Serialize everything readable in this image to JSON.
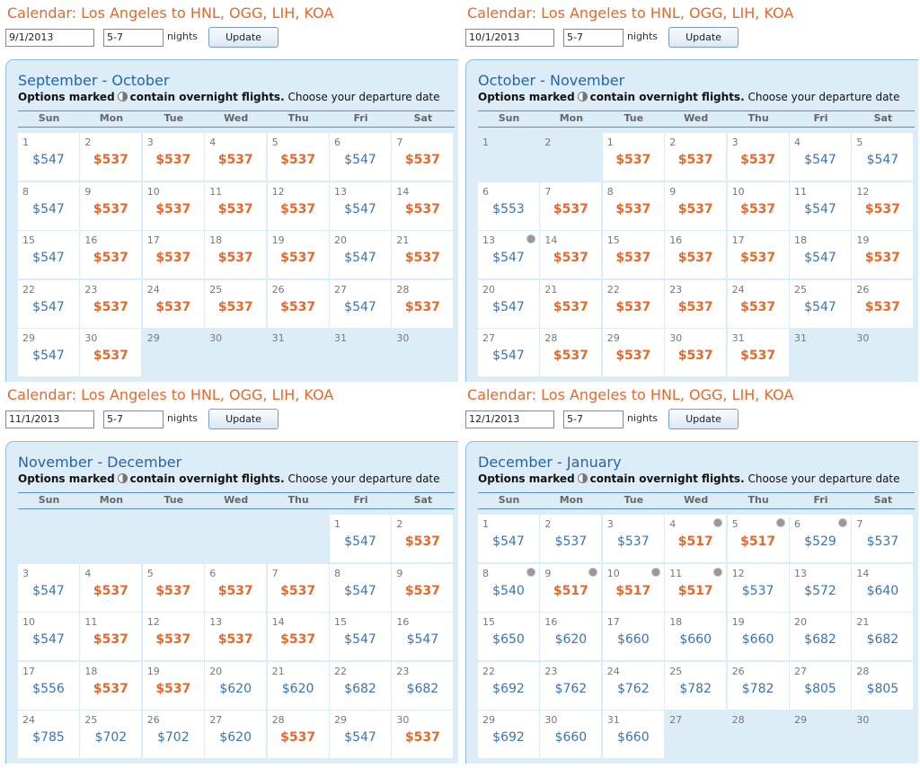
{
  "panels": [
    {
      "title": "Calendar: Los Angeles to HNL, OGG, LIH, KOA",
      "date": "9/1/2013",
      "nights": "5-7",
      "nights_label": "nights",
      "button": "Update",
      "heading": "September - October",
      "note": {
        "lead": "Options marked",
        "bold": "contain overnight flights.",
        "rest": "Choose your departure date"
      },
      "weekdays": [
        "Sun",
        "Mon",
        "Tue",
        "Wed",
        "Thu",
        "Fri",
        "Sat"
      ],
      "weeks": [
        [
          {
            "day": "1",
            "price": "$547"
          },
          {
            "day": "2",
            "price": "$537",
            "low": true
          },
          {
            "day": "3",
            "price": "$537",
            "low": true
          },
          {
            "day": "4",
            "price": "$537",
            "low": true
          },
          {
            "day": "5",
            "price": "$537",
            "low": true
          },
          {
            "day": "6",
            "price": "$547"
          },
          {
            "day": "7",
            "price": "$537",
            "low": true
          }
        ],
        [
          {
            "day": "8",
            "price": "$547"
          },
          {
            "day": "9",
            "price": "$537",
            "low": true
          },
          {
            "day": "10",
            "price": "$537",
            "low": true
          },
          {
            "day": "11",
            "price": "$537",
            "low": true
          },
          {
            "day": "12",
            "price": "$537",
            "low": true
          },
          {
            "day": "13",
            "price": "$547"
          },
          {
            "day": "14",
            "price": "$537",
            "low": true
          }
        ],
        [
          {
            "day": "15",
            "price": "$547"
          },
          {
            "day": "16",
            "price": "$537",
            "low": true
          },
          {
            "day": "17",
            "price": "$537",
            "low": true
          },
          {
            "day": "18",
            "price": "$537",
            "low": true
          },
          {
            "day": "19",
            "price": "$537",
            "low": true
          },
          {
            "day": "20",
            "price": "$547"
          },
          {
            "day": "21",
            "price": "$537",
            "low": true
          }
        ],
        [
          {
            "day": "22",
            "price": "$547"
          },
          {
            "day": "23",
            "price": "$537",
            "low": true
          },
          {
            "day": "24",
            "price": "$537",
            "low": true
          },
          {
            "day": "25",
            "price": "$537",
            "low": true
          },
          {
            "day": "26",
            "price": "$537",
            "low": true
          },
          {
            "day": "27",
            "price": "$547"
          },
          {
            "day": "28",
            "price": "$537",
            "low": true
          }
        ],
        [
          {
            "day": "29",
            "price": "$547"
          },
          {
            "day": "30",
            "price": "$537",
            "low": true
          },
          {
            "day": "29"
          },
          {
            "day": "30"
          },
          {
            "day": "31"
          },
          {
            "day": "31"
          },
          {
            "day": "30"
          }
        ]
      ]
    },
    {
      "title": "Calendar: Los Angeles to HNL, OGG, LIH, KOA",
      "date": "10/1/2013",
      "nights": "5-7",
      "nights_label": "nights",
      "button": "Update",
      "heading": "October - November",
      "note": {
        "lead": "Options marked",
        "bold": "contain overnight flights.",
        "rest": "Choose your departure date"
      },
      "weekdays": [
        "Sun",
        "Mon",
        "Tue",
        "Wed",
        "Thu",
        "Fri",
        "Sat"
      ],
      "weeks": [
        [
          {
            "day": "1"
          },
          {
            "day": "2"
          },
          {
            "day": "1",
            "price": "$537",
            "low": true
          },
          {
            "day": "2",
            "price": "$537",
            "low": true
          },
          {
            "day": "3",
            "price": "$537",
            "low": true
          },
          {
            "day": "4",
            "price": "$547"
          },
          {
            "day": "5",
            "price": "$547"
          }
        ],
        [
          {
            "day": "6",
            "price": "$553"
          },
          {
            "day": "7",
            "price": "$537",
            "low": true
          },
          {
            "day": "8",
            "price": "$537",
            "low": true
          },
          {
            "day": "9",
            "price": "$537",
            "low": true
          },
          {
            "day": "10",
            "price": "$537",
            "low": true
          },
          {
            "day": "11",
            "price": "$547"
          },
          {
            "day": "12",
            "price": "$537",
            "low": true
          }
        ],
        [
          {
            "day": "13",
            "price": "$547",
            "overnight": true
          },
          {
            "day": "14",
            "price": "$537",
            "low": true
          },
          {
            "day": "15",
            "price": "$537",
            "low": true
          },
          {
            "day": "16",
            "price": "$537",
            "low": true
          },
          {
            "day": "17",
            "price": "$537",
            "low": true
          },
          {
            "day": "18",
            "price": "$547"
          },
          {
            "day": "19",
            "price": "$537",
            "low": true
          }
        ],
        [
          {
            "day": "20",
            "price": "$547"
          },
          {
            "day": "21",
            "price": "$537",
            "low": true
          },
          {
            "day": "22",
            "price": "$537",
            "low": true
          },
          {
            "day": "23",
            "price": "$537",
            "low": true
          },
          {
            "day": "24",
            "price": "$537",
            "low": true
          },
          {
            "day": "25",
            "price": "$547"
          },
          {
            "day": "26",
            "price": "$537",
            "low": true
          }
        ],
        [
          {
            "day": "27",
            "price": "$547"
          },
          {
            "day": "28",
            "price": "$537",
            "low": true
          },
          {
            "day": "29",
            "price": "$537",
            "low": true
          },
          {
            "day": "30",
            "price": "$537",
            "low": true
          },
          {
            "day": "31",
            "price": "$537",
            "low": true
          },
          {
            "day": "31"
          },
          {
            "day": "30"
          }
        ]
      ]
    },
    {
      "title": "Calendar: Los Angeles to HNL, OGG, LIH, KOA",
      "date": "11/1/2013",
      "nights": "5-7",
      "nights_label": "nights",
      "button": "Update",
      "heading": "November - December",
      "note": {
        "lead": "Options marked",
        "bold": "contain overnight flights.",
        "rest": "Choose your departure date"
      },
      "weekdays": [
        "Sun",
        "Mon",
        "Tue",
        "Wed",
        "Thu",
        "Fri",
        "Sat"
      ],
      "weeks": [
        [
          null,
          null,
          null,
          null,
          null,
          {
            "day": "1",
            "price": "$547"
          },
          {
            "day": "2",
            "price": "$537",
            "low": true
          }
        ],
        [
          {
            "day": "3",
            "price": "$547"
          },
          {
            "day": "4",
            "price": "$537",
            "low": true
          },
          {
            "day": "5",
            "price": "$537",
            "low": true
          },
          {
            "day": "6",
            "price": "$537",
            "low": true
          },
          {
            "day": "7",
            "price": "$537",
            "low": true
          },
          {
            "day": "8",
            "price": "$547"
          },
          {
            "day": "9",
            "price": "$537",
            "low": true
          }
        ],
        [
          {
            "day": "10",
            "price": "$547"
          },
          {
            "day": "11",
            "price": "$537",
            "low": true
          },
          {
            "day": "12",
            "price": "$537",
            "low": true
          },
          {
            "day": "13",
            "price": "$537",
            "low": true
          },
          {
            "day": "14",
            "price": "$537",
            "low": true
          },
          {
            "day": "15",
            "price": "$547"
          },
          {
            "day": "16",
            "price": "$547"
          }
        ],
        [
          {
            "day": "17",
            "price": "$556"
          },
          {
            "day": "18",
            "price": "$537",
            "low": true
          },
          {
            "day": "19",
            "price": "$537",
            "low": true
          },
          {
            "day": "20",
            "price": "$620"
          },
          {
            "day": "21",
            "price": "$620"
          },
          {
            "day": "22",
            "price": "$682"
          },
          {
            "day": "23",
            "price": "$682"
          }
        ],
        [
          {
            "day": "24",
            "price": "$785"
          },
          {
            "day": "25",
            "price": "$702"
          },
          {
            "day": "26",
            "price": "$702"
          },
          {
            "day": "27",
            "price": "$620"
          },
          {
            "day": "28",
            "price": "$537",
            "low": true
          },
          {
            "day": "29",
            "price": "$547"
          },
          {
            "day": "30",
            "price": "$537",
            "low": true
          }
        ]
      ]
    },
    {
      "title": "Calendar: Los Angeles to HNL, OGG, LIH, KOA",
      "date": "12/1/2013",
      "nights": "5-7",
      "nights_label": "nights",
      "button": "Update",
      "heading": "December - January",
      "note": {
        "lead": "Options marked",
        "bold": "contain overnight flights.",
        "rest": "Choose your departure date"
      },
      "weekdays": [
        "Sun",
        "Mon",
        "Tue",
        "Wed",
        "Thu",
        "Fri",
        "Sat"
      ],
      "weeks": [
        [
          {
            "day": "1",
            "price": "$547"
          },
          {
            "day": "2",
            "price": "$537"
          },
          {
            "day": "3",
            "price": "$537"
          },
          {
            "day": "4",
            "price": "$517",
            "low": true,
            "overnight": true
          },
          {
            "day": "5",
            "price": "$517",
            "low": true,
            "overnight": true
          },
          {
            "day": "6",
            "price": "$529",
            "overnight": true
          },
          {
            "day": "7",
            "price": "$537"
          }
        ],
        [
          {
            "day": "8",
            "price": "$540",
            "overnight": true
          },
          {
            "day": "9",
            "price": "$517",
            "low": true,
            "overnight": true
          },
          {
            "day": "10",
            "price": "$517",
            "low": true,
            "overnight": true
          },
          {
            "day": "11",
            "price": "$517",
            "low": true,
            "overnight": true
          },
          {
            "day": "12",
            "price": "$537"
          },
          {
            "day": "13",
            "price": "$572"
          },
          {
            "day": "14",
            "price": "$640"
          }
        ],
        [
          {
            "day": "15",
            "price": "$650"
          },
          {
            "day": "16",
            "price": "$620"
          },
          {
            "day": "17",
            "price": "$660"
          },
          {
            "day": "18",
            "price": "$660"
          },
          {
            "day": "19",
            "price": "$660"
          },
          {
            "day": "20",
            "price": "$682"
          },
          {
            "day": "21",
            "price": "$682"
          }
        ],
        [
          {
            "day": "22",
            "price": "$692"
          },
          {
            "day": "23",
            "price": "$762"
          },
          {
            "day": "24",
            "price": "$762"
          },
          {
            "day": "25",
            "price": "$782"
          },
          {
            "day": "26",
            "price": "$782"
          },
          {
            "day": "27",
            "price": "$805"
          },
          {
            "day": "28",
            "price": "$805"
          }
        ],
        [
          {
            "day": "29",
            "price": "$692"
          },
          {
            "day": "30",
            "price": "$660"
          },
          {
            "day": "31",
            "price": "$660"
          },
          {
            "day": "27"
          },
          {
            "day": "28"
          },
          {
            "day": "29"
          },
          {
            "day": "30"
          }
        ]
      ]
    }
  ]
}
